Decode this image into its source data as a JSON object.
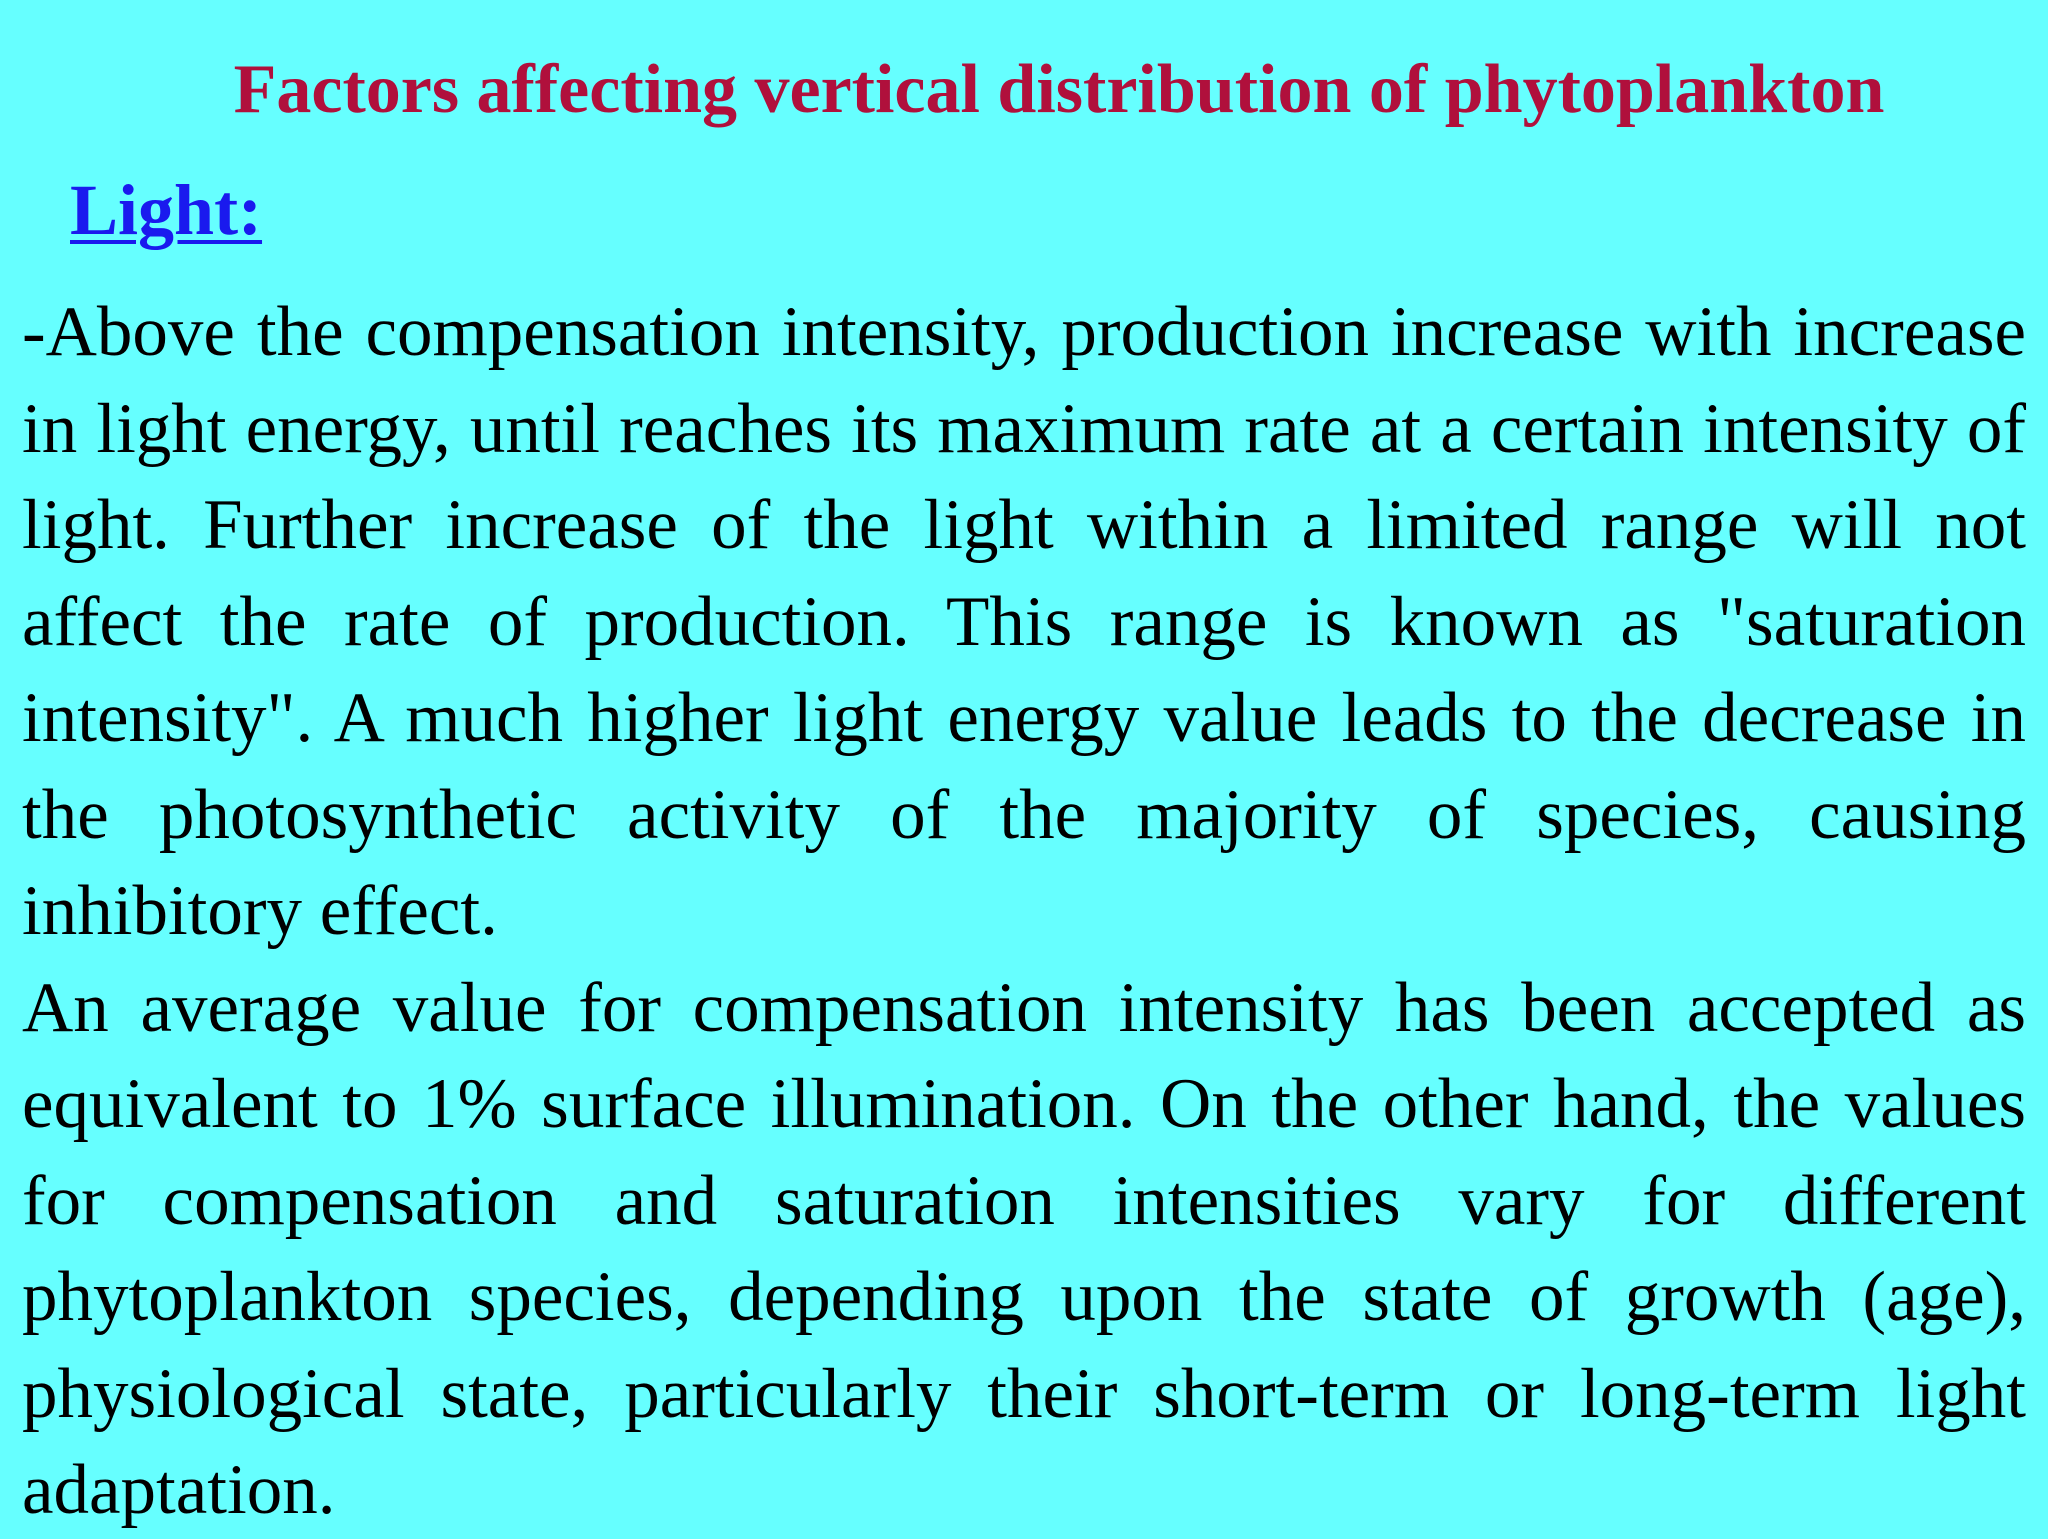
{
  "slide": {
    "title": "Factors affecting vertical distribution of phytoplankton",
    "heading": "Light:",
    "paragraphs": [
      "-Above the compensation intensity, production increase with increase in light energy, until reaches its maximum rate at a certain intensity of light. Further increase of the light within a limited range will not affect the rate of production. This range is known as \"saturation intensity\". A much higher light energy value leads to the decrease in the photosynthetic activity of the majority of species, causing inhibitory effect.",
      "An average value for compensation intensity has been accepted as equivalent to 1% surface illumination. On the other hand, the values for compensation and saturation intensities vary for different phytoplankton species, depending upon the state of growth (age), physiological state, particularly their short-term or long-term light adaptation."
    ]
  },
  "colors": {
    "background": "#66ffff",
    "title": "#b0103c",
    "heading": "#1a1aee",
    "body_text": "#000000"
  }
}
